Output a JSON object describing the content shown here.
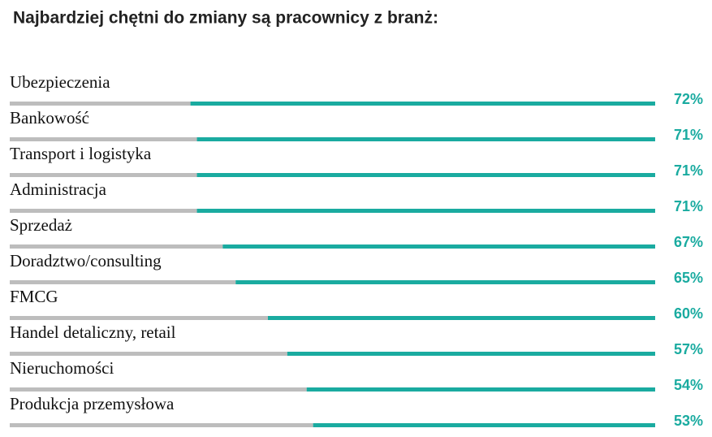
{
  "chart_data": {
    "type": "bar",
    "orientation": "horizontal",
    "title": "Najbardziej chętni do zmiany są pracownicy z branż:",
    "categories": [
      "Ubezpieczenia",
      "Bankowość",
      "Transport i logistyka",
      "Administracja",
      "Sprzedaż",
      "Doradztwo/consulting",
      "FMCG",
      "Handel detaliczny,  retail",
      "Nieruchomości",
      "Produkcja przemysłowa"
    ],
    "values": [
      72,
      71,
      71,
      71,
      67,
      65,
      60,
      57,
      54,
      53
    ],
    "value_labels": [
      "72%",
      "71%",
      "71%",
      "71%",
      "67%",
      "65%",
      "60%",
      "57%",
      "54%",
      "53%"
    ],
    "color": "#1aaba0",
    "track_color": "#bdbdbd",
    "xlim": [
      0,
      100
    ]
  }
}
